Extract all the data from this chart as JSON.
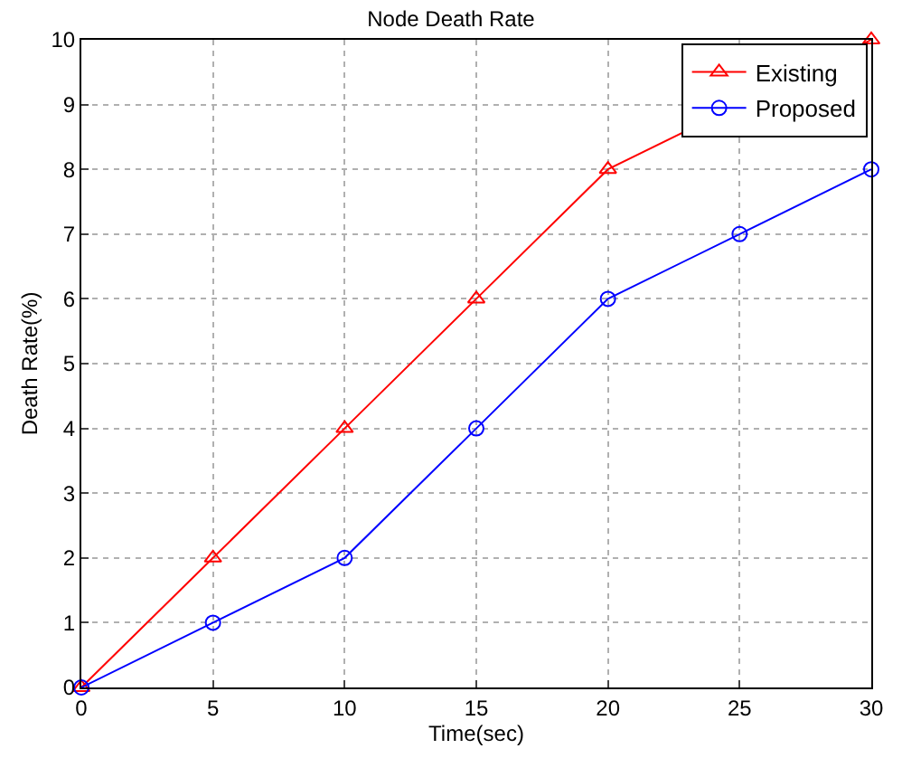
{
  "chart_data": {
    "type": "line",
    "title": "Node Death Rate",
    "xlabel": "Time(sec)",
    "ylabel": "Death Rate(%)",
    "x": [
      0,
      5,
      10,
      15,
      20,
      25,
      30
    ],
    "series": [
      {
        "name": "Existing",
        "color": "#ff0000",
        "marker": "triangle",
        "values": [
          0,
          2,
          4,
          6,
          8,
          null,
          10
        ]
      },
      {
        "name": "Proposed",
        "color": "#0000ff",
        "marker": "circle",
        "values": [
          0,
          1,
          2,
          4,
          6,
          7,
          8
        ]
      }
    ],
    "xlim": [
      0,
      30
    ],
    "xticks": [
      0,
      5,
      10,
      15,
      20,
      25,
      30
    ],
    "ylim": [
      0,
      10
    ],
    "yticks": [
      0,
      1,
      2,
      3,
      4,
      5,
      6,
      7,
      8,
      9,
      10
    ],
    "grid": true,
    "legend": "top right",
    "line_style": "solid"
  }
}
